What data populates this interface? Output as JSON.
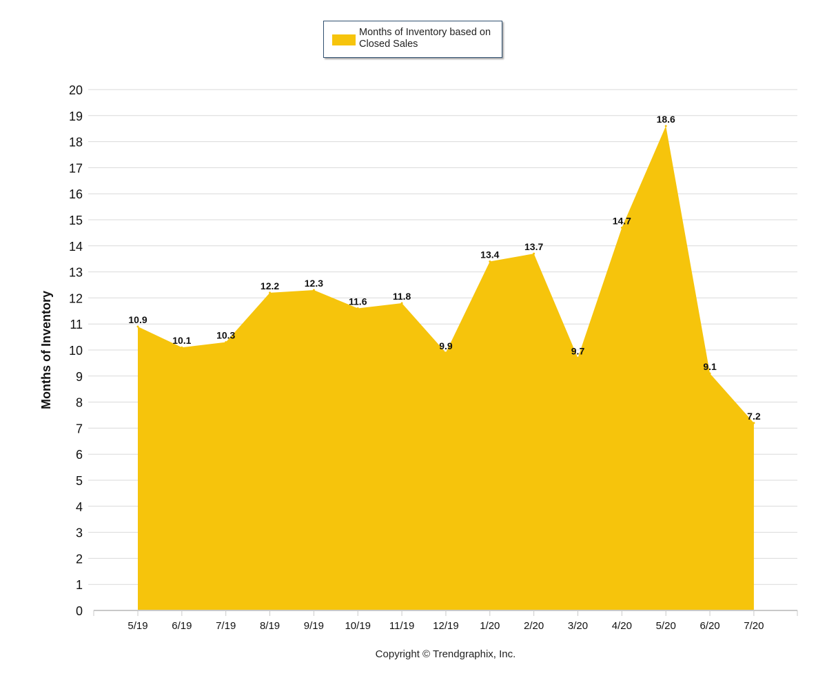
{
  "chart_data": {
    "type": "area",
    "categories": [
      "5/19",
      "6/19",
      "7/19",
      "8/19",
      "9/19",
      "10/19",
      "11/19",
      "12/19",
      "1/20",
      "2/20",
      "3/20",
      "4/20",
      "5/20",
      "6/20",
      "7/20"
    ],
    "series": [
      {
        "name": "Months of Inventory based on Closed Sales",
        "values": [
          10.9,
          10.1,
          10.3,
          12.2,
          12.3,
          11.6,
          11.8,
          9.9,
          13.4,
          13.7,
          9.7,
          14.7,
          18.6,
          9.1,
          7.2
        ],
        "data_labels": [
          "10.9",
          "10.1",
          "10.3",
          "12.2",
          "12.3",
          "11.6",
          "11.8",
          "9.9",
          "13.4",
          "13.7",
          "9.7",
          "14.7",
          "18.6",
          "9.1",
          "7.2"
        ],
        "color": "#F6C40C"
      }
    ],
    "ylabel": "Months of Inventory",
    "xlabel": "",
    "ylim": [
      0,
      20
    ],
    "yticks": [
      "0",
      "1",
      "2",
      "3",
      "4",
      "5",
      "6",
      "7",
      "8",
      "9",
      "10",
      "11",
      "12",
      "13",
      "14",
      "15",
      "16",
      "17",
      "18",
      "19",
      "20"
    ],
    "grid": true,
    "legend_position": "top-center"
  },
  "legend": {
    "label": "Months of Inventory based on Closed Sales"
  },
  "footer": {
    "copyright": "Copyright © Trendgraphix, Inc."
  },
  "colors": {
    "area": "#F6C40C",
    "grid": "#d9d9d9",
    "axis": "#c8c8c8",
    "text": "#111111"
  }
}
